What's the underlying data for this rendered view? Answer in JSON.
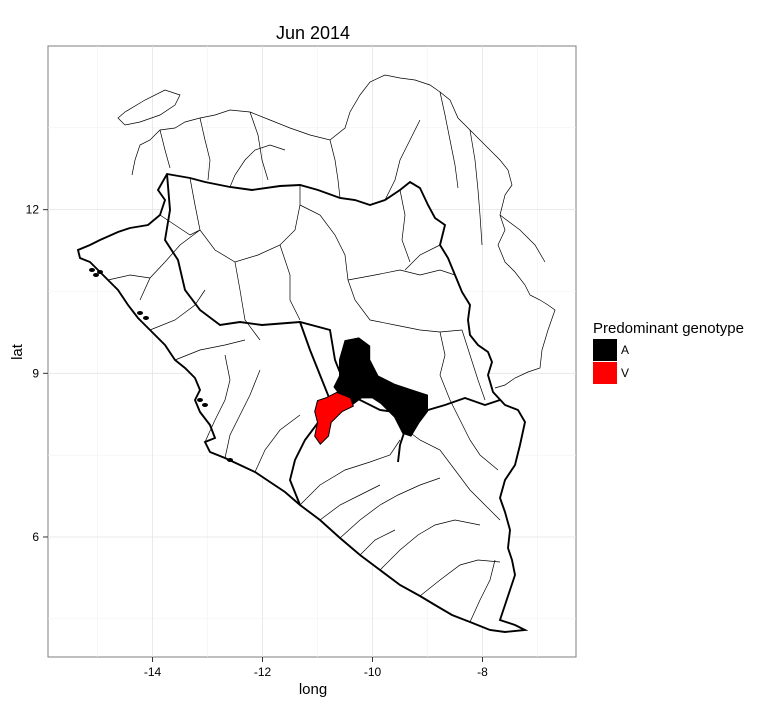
{
  "title": "Jun 2014",
  "x_axis": {
    "label": "long",
    "range": [
      -15.9,
      -6.3
    ],
    "ticks": [
      {
        "value": -14,
        "label": "-14"
      },
      {
        "value": -12,
        "label": "-12"
      },
      {
        "value": -10,
        "label": "-10"
      },
      {
        "value": -8,
        "label": "-8"
      }
    ]
  },
  "y_axis": {
    "label": "lat",
    "range": [
      3.8,
      15.0
    ],
    "ticks": [
      {
        "value": 6,
        "label": "6"
      },
      {
        "value": 9,
        "label": "9"
      },
      {
        "value": 12,
        "label": "12"
      }
    ]
  },
  "grid": "major and minor, light grey",
  "legend": {
    "title": "Predominant genotype",
    "placement": "right",
    "items": [
      {
        "label": "A",
        "color": "#000000"
      },
      {
        "label": "V",
        "color": "#ff0000"
      }
    ]
  },
  "regions": {
    "genotype_A": [
      [
        -10.5,
        9.6
      ],
      [
        -10.25,
        9.65
      ],
      [
        -10.05,
        9.5
      ],
      [
        -10.05,
        9.25
      ],
      [
        -9.9,
        8.95
      ],
      [
        -9.6,
        8.8
      ],
      [
        -9.3,
        8.7
      ],
      [
        -9.0,
        8.6
      ],
      [
        -9.0,
        8.3
      ],
      [
        -9.15,
        8.1
      ],
      [
        -9.3,
        7.85
      ],
      [
        -9.45,
        7.9
      ],
      [
        -9.6,
        8.2
      ],
      [
        -9.85,
        8.45
      ],
      [
        -10.0,
        8.55
      ],
      [
        -10.2,
        8.55
      ],
      [
        -10.4,
        8.4
      ],
      [
        -10.55,
        8.55
      ],
      [
        -10.7,
        8.75
      ],
      [
        -10.6,
        8.95
      ],
      [
        -10.6,
        9.25
      ]
    ],
    "genotype_V": [
      [
        -10.65,
        8.65
      ],
      [
        -10.4,
        8.55
      ],
      [
        -10.35,
        8.4
      ],
      [
        -10.55,
        8.3
      ],
      [
        -10.75,
        8.1
      ],
      [
        -10.8,
        7.85
      ],
      [
        -10.95,
        7.7
      ],
      [
        -11.05,
        7.85
      ],
      [
        -11.0,
        8.1
      ],
      [
        -11.05,
        8.3
      ],
      [
        -11.0,
        8.5
      ],
      [
        -10.85,
        8.55
      ]
    ]
  }
}
